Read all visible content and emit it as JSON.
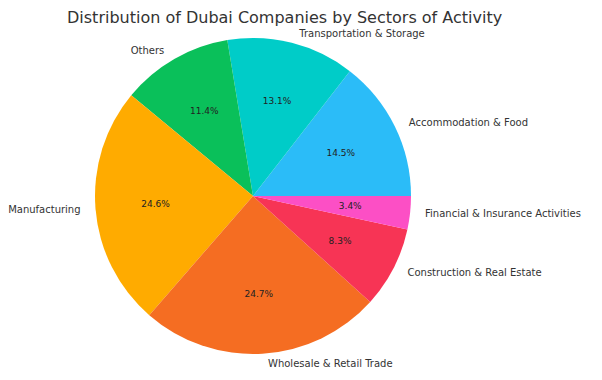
{
  "chart_data": {
    "type": "pie",
    "title": "Distribution of Dubai Companies by Sectors of Activity",
    "categories": [
      "Accommodation & Food",
      "Transportation & Storage",
      "Others",
      "Manufacturing",
      "Wholesale & Retail Trade",
      "Construction & Real Estate",
      "Financial & Insurance Activities"
    ],
    "values": [
      14.5,
      13.1,
      11.4,
      24.6,
      24.7,
      8.3,
      3.4
    ],
    "value_labels": [
      "14.5%",
      "13.1%",
      "11.4%",
      "24.6%",
      "24.7%",
      "8.3%",
      "3.4%"
    ],
    "colors": [
      "#2bbcf8",
      "#00ccc8",
      "#0ac05a",
      "#ffab00",
      "#f56d22",
      "#f73455",
      "#fc4fc5"
    ],
    "data_labels": true
  }
}
